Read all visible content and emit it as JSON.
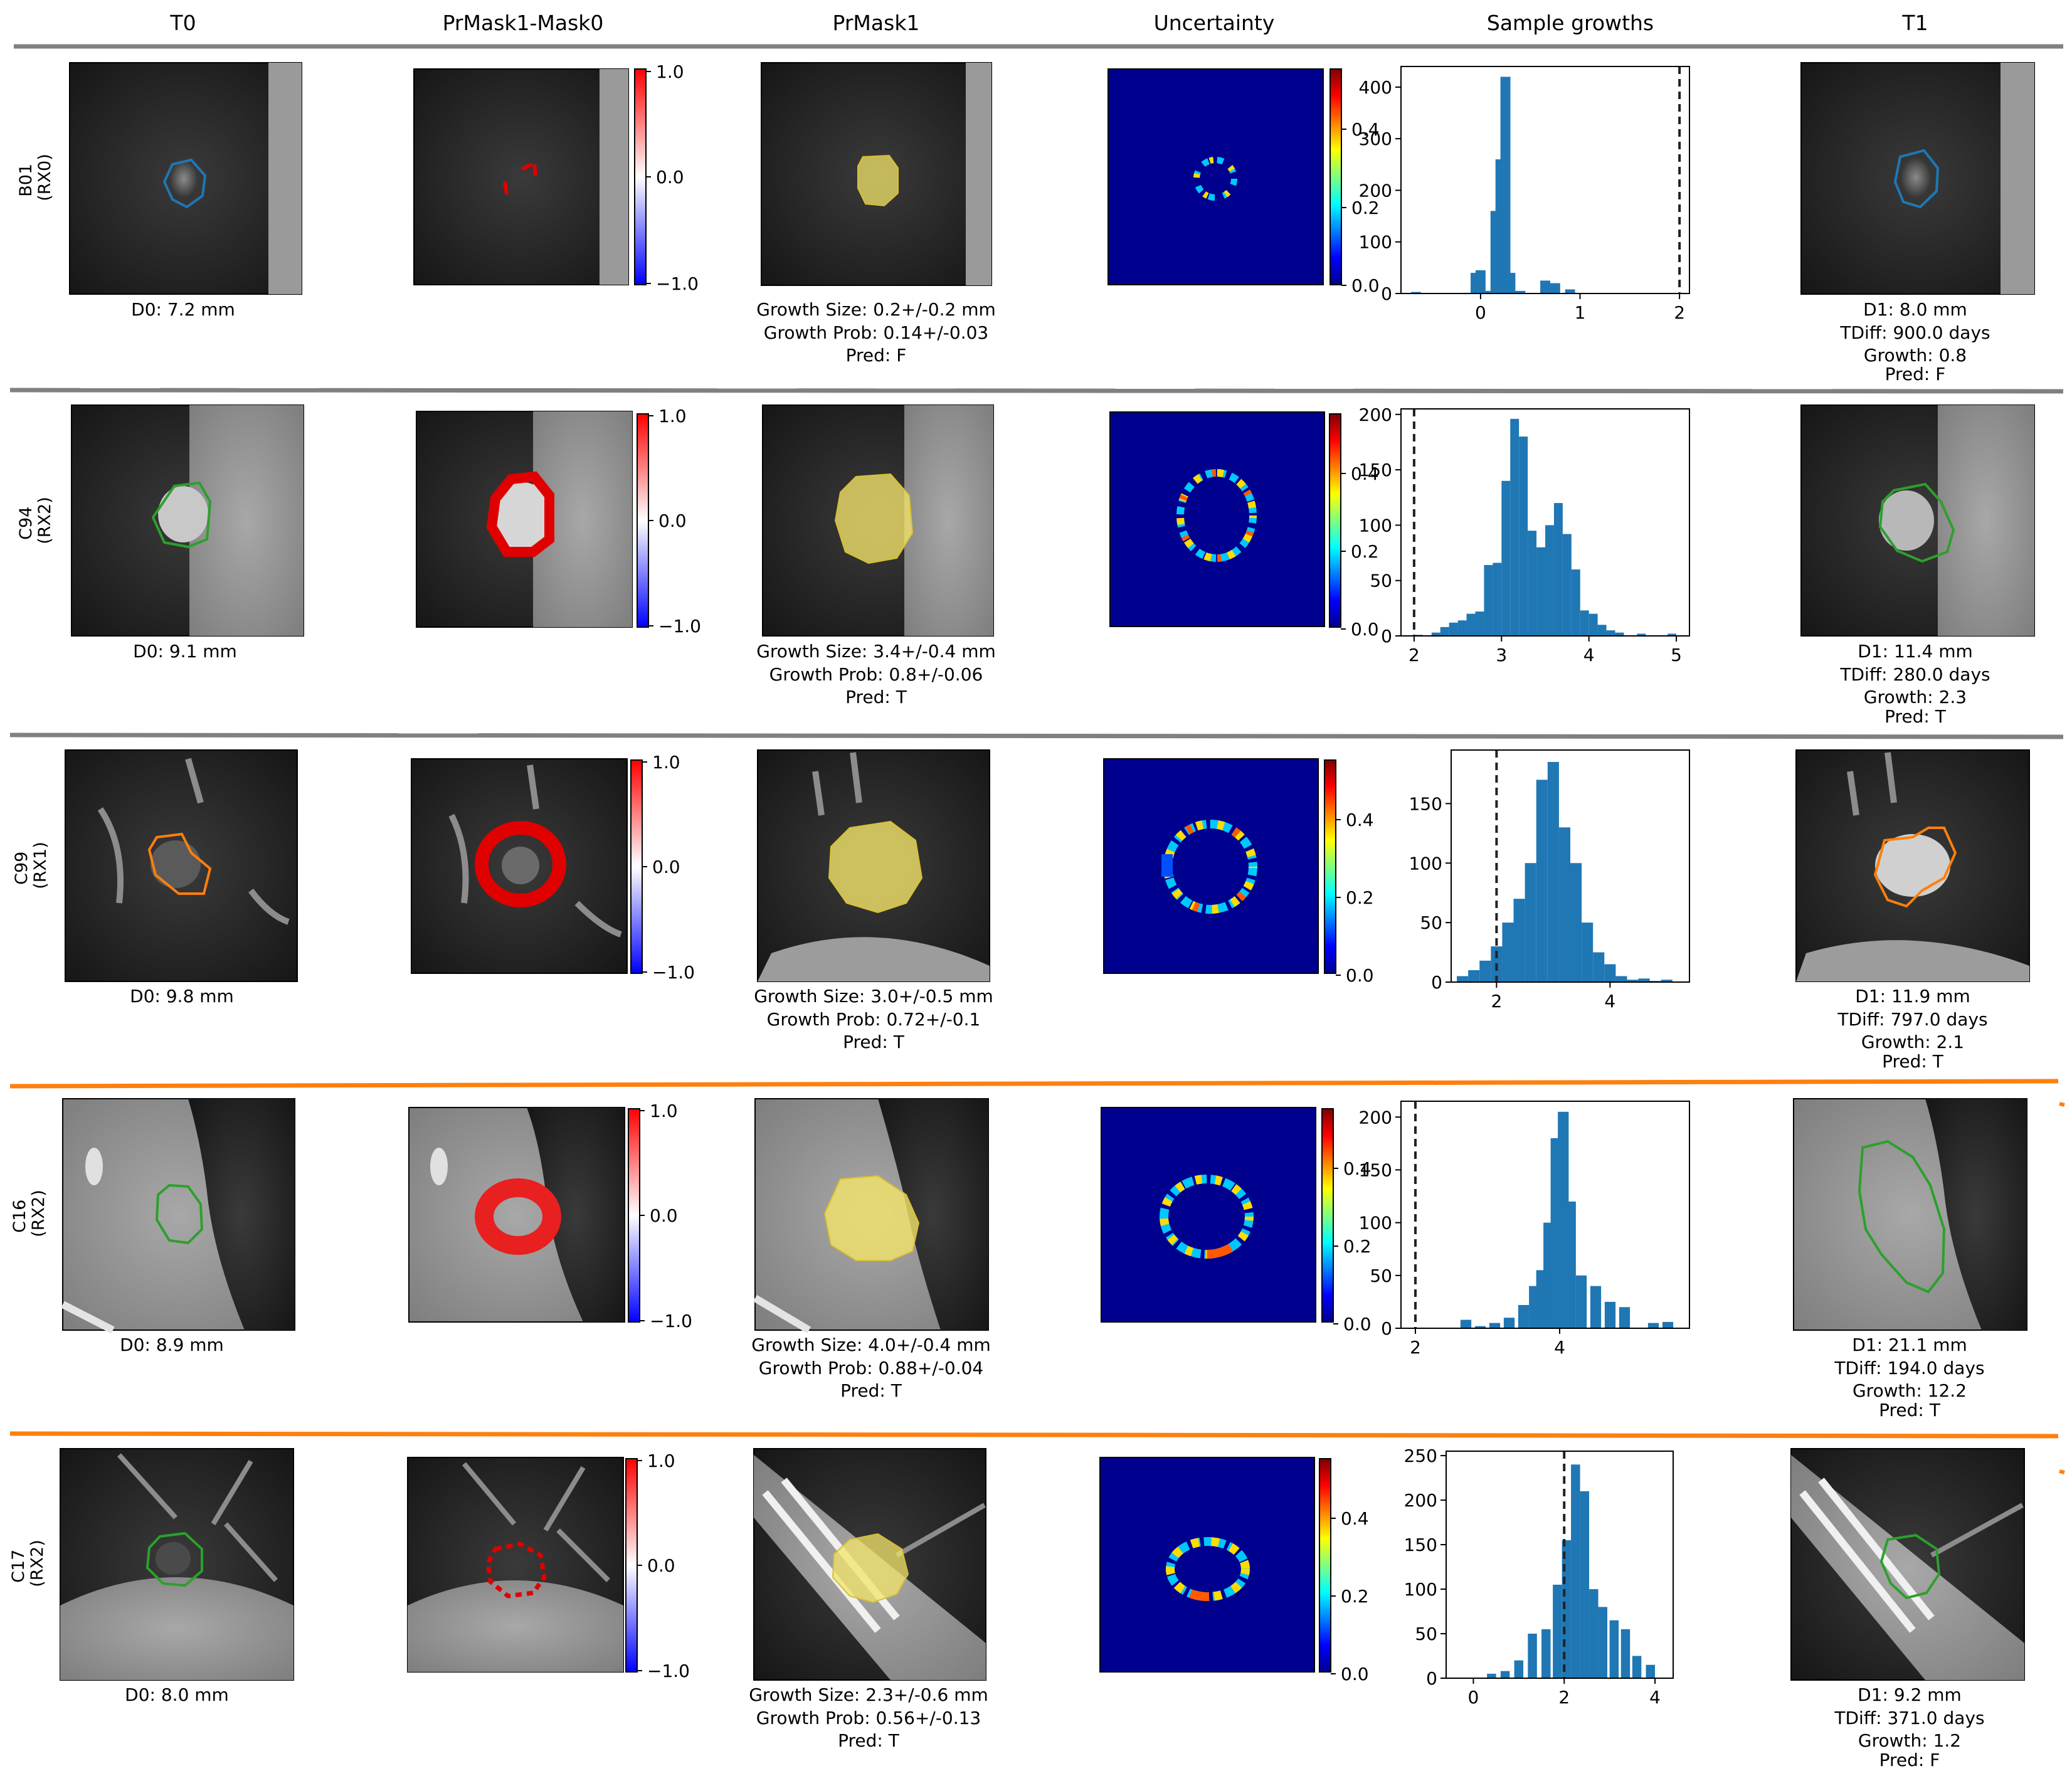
{
  "columns": [
    "T0",
    "PrMask1-Mask0",
    "PrMask1",
    "Uncertainty",
    "Sample growths",
    "T1"
  ],
  "colorbar_diff_ticks": [
    "1.0",
    "0.0",
    "−1.0"
  ],
  "colorbar_unc_ticks": [
    "0.4",
    "0.2",
    "0.0"
  ],
  "colors": {
    "row_sep_grey": "#808080",
    "row_sep_orange": "#ff7f0e",
    "hist_bar": "#1f77b4",
    "mask_fill": "#f4e46a",
    "jet_background": "#00008f"
  },
  "rows": [
    {
      "id_lines": [
        "B01",
        "(RX0)"
      ],
      "contour_color": "#1f77b4",
      "separator_above": "grey",
      "t0_caption": "D0: 7.2 mm",
      "pred_lines": [
        "Growth Size: 0.2+/-0.2 mm",
        "Growth Prob: 0.14+/-0.03",
        "Pred: F"
      ],
      "t1_lines": [
        "D1: 8.0 mm",
        "TDiff: 900.0 days",
        "Growth: 0.8",
        "Pred: F"
      ]
    },
    {
      "id_lines": [
        "C94",
        "(RX2)"
      ],
      "contour_color": "#2ca02c",
      "separator_above": "grey",
      "t0_caption": "D0: 9.1 mm",
      "pred_lines": [
        "Growth Size: 3.4+/-0.4 mm",
        "Growth Prob: 0.8+/-0.06",
        "Pred: T"
      ],
      "t1_lines": [
        "D1: 11.4 mm",
        "TDiff: 280.0 days",
        "Growth: 2.3",
        "Pred: T"
      ]
    },
    {
      "id_lines": [
        "C99",
        "(RX1)"
      ],
      "contour_color": "#ff7f0e",
      "separator_above": "grey",
      "t0_caption": "D0: 9.8 mm",
      "pred_lines": [
        "Growth Size: 3.0+/-0.5 mm",
        "Growth Prob: 0.72+/-0.1",
        "Pred: T"
      ],
      "t1_lines": [
        "D1: 11.9 mm",
        "TDiff: 797.0 days",
        "Growth: 2.1",
        "Pred: T"
      ]
    },
    {
      "id_lines": [
        "C16",
        "(RX2)"
      ],
      "contour_color": "#2ca02c",
      "separator_above": "orange",
      "t0_caption": "D0: 8.9 mm",
      "pred_lines": [
        "Growth Size: 4.0+/-0.4 mm",
        "Growth Prob: 0.88+/-0.04",
        "Pred: T"
      ],
      "t1_lines": [
        "D1: 21.1 mm",
        "TDiff: 194.0 days",
        "Growth: 12.2",
        "Pred: T"
      ]
    },
    {
      "id_lines": [
        "C17",
        "(RX2)"
      ],
      "contour_color": "#2ca02c",
      "separator_above": "orange",
      "t0_caption": "D0: 8.0 mm",
      "pred_lines": [
        "Growth Size: 2.3+/-0.6 mm",
        "Growth Prob: 0.56+/-0.13",
        "Pred: T"
      ],
      "t1_lines": [
        "D1: 9.2 mm",
        "TDiff: 371.0 days",
        "Growth: 1.2",
        "Pred: F"
      ]
    }
  ],
  "chart_data": [
    {
      "type": "bar",
      "row": "B01",
      "title": "Sample growths",
      "xlim": [
        -0.8,
        2.1
      ],
      "ylim": [
        0,
        440
      ],
      "xticks": [
        0,
        1,
        2
      ],
      "yticks": [
        0,
        100,
        200,
        300,
        400
      ],
      "bin_centers": [
        -0.65,
        -0.05,
        0.0,
        0.05,
        0.15,
        0.2,
        0.25,
        0.3,
        0.4,
        0.65,
        0.75,
        0.9
      ],
      "bin_width": 0.1,
      "values": [
        3,
        40,
        45,
        5,
        160,
        260,
        420,
        40,
        5,
        25,
        20,
        8
      ],
      "threshold_line": 2.0,
      "grid": false
    },
    {
      "type": "bar",
      "row": "C94",
      "title": "Sample growths",
      "xlim": [
        1.85,
        5.15
      ],
      "ylim": [
        0,
        205
      ],
      "xticks": [
        2,
        3,
        4,
        5
      ],
      "yticks": [
        0,
        50,
        100,
        150,
        200
      ],
      "bin_centers": [
        2.05,
        2.25,
        2.35,
        2.45,
        2.55,
        2.65,
        2.75,
        2.85,
        2.95,
        3.05,
        3.15,
        3.25,
        3.35,
        3.45,
        3.55,
        3.65,
        3.75,
        3.85,
        3.95,
        4.05,
        4.15,
        4.25,
        4.35,
        4.6,
        4.95
      ],
      "bin_width": 0.1,
      "values": [
        1,
        3,
        8,
        12,
        14,
        20,
        22,
        64,
        66,
        140,
        196,
        180,
        95,
        80,
        100,
        120,
        92,
        60,
        23,
        20,
        10,
        5,
        3,
        2,
        2
      ],
      "threshold_line": 2.0,
      "grid": false
    },
    {
      "type": "bar",
      "row": "C99",
      "title": "Sample growths",
      "xlim": [
        1.2,
        5.4
      ],
      "ylim": [
        0,
        195
      ],
      "xticks": [
        2,
        4
      ],
      "yticks": [
        0,
        50,
        100,
        150
      ],
      "bin_centers": [
        1.4,
        1.6,
        1.8,
        2.0,
        2.2,
        2.4,
        2.6,
        2.8,
        3.0,
        3.2,
        3.4,
        3.6,
        3.8,
        4.0,
        4.2,
        4.4,
        4.6,
        4.8,
        5.0
      ],
      "bin_width": 0.2,
      "values": [
        5,
        10,
        18,
        30,
        50,
        70,
        100,
        170,
        185,
        130,
        100,
        50,
        25,
        15,
        5,
        2,
        3,
        1,
        2
      ],
      "threshold_line": 2.0,
      "grid": false
    },
    {
      "type": "bar",
      "row": "C16",
      "title": "Sample growths",
      "xlim": [
        1.8,
        5.8
      ],
      "ylim": [
        0,
        215
      ],
      "xticks": [
        2,
        4
      ],
      "yticks": [
        0,
        50,
        100,
        150,
        200
      ],
      "bin_centers": [
        2.7,
        2.9,
        3.1,
        3.3,
        3.5,
        3.65,
        3.75,
        3.85,
        3.95,
        4.05,
        4.15,
        4.3,
        4.5,
        4.7,
        4.9,
        5.3,
        5.5
      ],
      "bin_width": 0.15,
      "values": [
        8,
        2,
        5,
        10,
        22,
        40,
        55,
        100,
        180,
        205,
        120,
        50,
        40,
        25,
        20,
        5,
        6
      ],
      "threshold_line": 2.0,
      "grid": false
    },
    {
      "type": "bar",
      "row": "C17",
      "title": "Sample growths",
      "xlim": [
        -0.6,
        4.4
      ],
      "ylim": [
        0,
        255
      ],
      "xticks": [
        0,
        2,
        4
      ],
      "yticks": [
        0,
        50,
        100,
        150,
        200,
        250
      ],
      "bin_centers": [
        0.4,
        0.7,
        1.0,
        1.3,
        1.6,
        1.85,
        2.05,
        2.25,
        2.45,
        2.65,
        2.85,
        3.1,
        3.35,
        3.6,
        3.9
      ],
      "bin_width": 0.2,
      "values": [
        5,
        8,
        20,
        50,
        55,
        105,
        155,
        240,
        210,
        100,
        80,
        65,
        55,
        25,
        15
      ],
      "threshold_line": 2.0,
      "grid": false
    }
  ]
}
